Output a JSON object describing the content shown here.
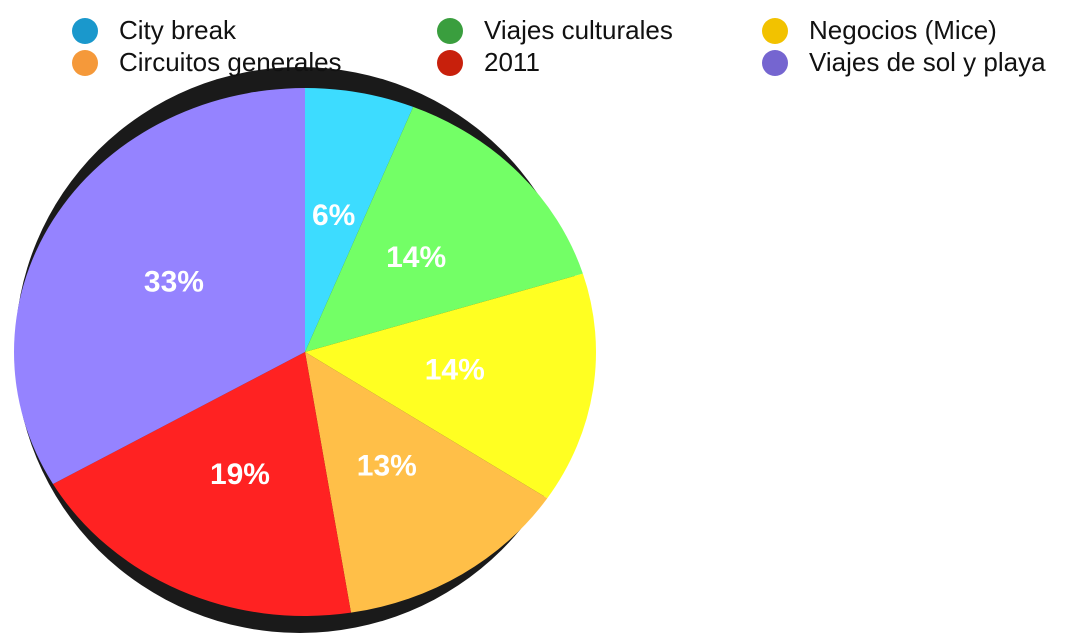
{
  "chart_data": {
    "type": "pie",
    "categories": [
      "City break",
      "Viajes culturales",
      "Negocios (Mice)",
      "Circuitos generales",
      "2011",
      "Viajes de sol y playa"
    ],
    "values": [
      6,
      14,
      14,
      13,
      19,
      33
    ],
    "value_labels": [
      "6%",
      "14%",
      "14%",
      "13%",
      "19%",
      "33%"
    ],
    "colors": [
      "#3ddcff",
      "#73ff66",
      "#ffff22",
      "#ffbf48",
      "#ff2222",
      "#9583ff"
    ],
    "legend_colors": [
      "#1a98cc",
      "#3a9e3e",
      "#f2c200",
      "#f5993a",
      "#c8200c",
      "#7565d0"
    ],
    "legend_position": "top"
  }
}
